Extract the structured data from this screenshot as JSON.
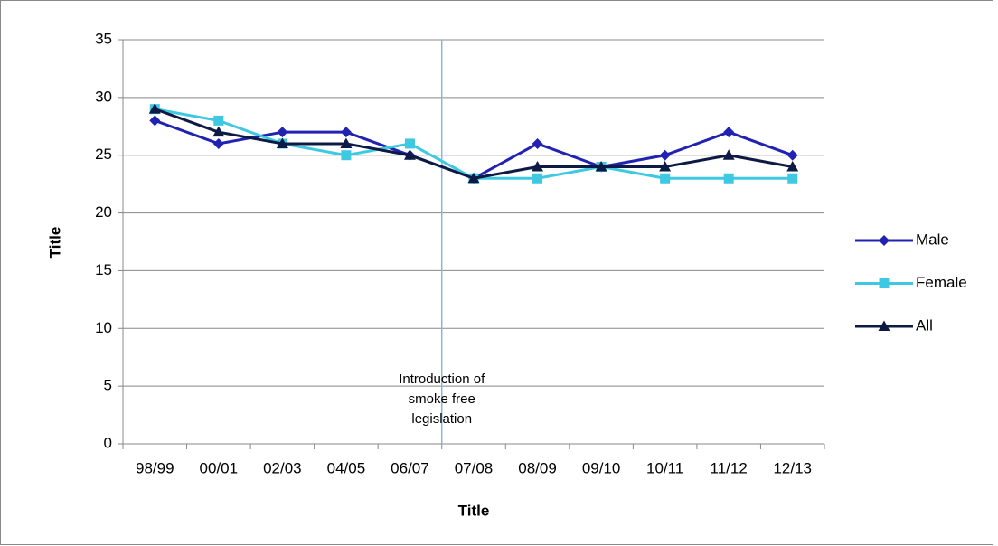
{
  "chart_data": {
    "type": "line",
    "categories": [
      "98/99",
      "00/01",
      "02/03",
      "04/05",
      "06/07",
      "07/08",
      "08/09",
      "09/10",
      "10/11",
      "11/12",
      "12/13"
    ],
    "series": [
      {
        "name": "Male",
        "color": "#2222b2",
        "marker": "diamond",
        "values": [
          28,
          26,
          27,
          27,
          25,
          23,
          26,
          24,
          25,
          27,
          25
        ]
      },
      {
        "name": "Female",
        "color": "#3fc8e2",
        "marker": "square",
        "values": [
          29,
          28,
          26,
          25,
          26,
          23,
          23,
          24,
          23,
          23,
          23
        ]
      },
      {
        "name": "All",
        "color": "#0c1a45",
        "marker": "triangle",
        "values": [
          29,
          27,
          26,
          26,
          25,
          23,
          24,
          24,
          24,
          25,
          24
        ]
      }
    ],
    "xlabel": "Title",
    "ylabel": "Title",
    "ylim": [
      0,
      35
    ],
    "yticks": [
      0,
      5,
      10,
      15,
      20,
      25,
      30,
      35
    ],
    "grid": true,
    "legend": "right",
    "annotation": {
      "lines": [
        "Introduction of",
        "smoke free",
        "legislation"
      ],
      "after_category": "06/07",
      "color": "#8fb4dc"
    }
  }
}
